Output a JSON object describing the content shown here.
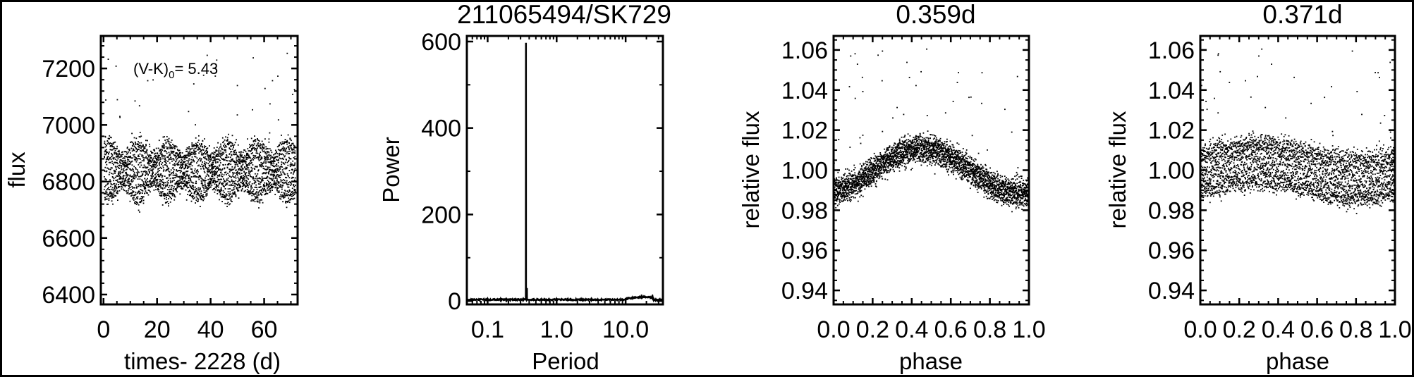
{
  "colors": {
    "ink": "#000000",
    "background": "#ffffff"
  },
  "chart_data": [
    {
      "type": "scatter",
      "title": "",
      "xlabel": "times- 2228 (d)",
      "ylabel": "flux",
      "xlim": [
        -1,
        72.5
      ],
      "ylim": [
        6365,
        7315
      ],
      "xticks": [
        0,
        20,
        40,
        60
      ],
      "xtick_labels": [
        "0",
        "20",
        "40",
        "60"
      ],
      "yticks": [
        6400,
        6600,
        6800,
        7000,
        7200
      ],
      "ytick_labels": [
        "6400",
        "6600",
        "6800",
        "7000",
        "7200"
      ],
      "annotation": {
        "prefix": "(V-K)",
        "sub": "0",
        "suffix": "= 5.43"
      },
      "grid": false,
      "series_summary": {
        "mean_flux": 6840,
        "band": [
          6730,
          6960
        ],
        "outlier_max": 7290,
        "time_span": [
          0,
          71.5
        ]
      }
    },
    {
      "type": "line",
      "title": "211065494/SK729",
      "xlabel": "Period",
      "ylabel": "Power",
      "xscale": "log",
      "xlim": [
        0.05,
        34.7
      ],
      "ylim": [
        -8,
        613
      ],
      "xticks": [
        0.1,
        1.0,
        10.0
      ],
      "xtick_labels": [
        "0.1",
        "1.0",
        "10.0"
      ],
      "yticks": [
        0,
        200,
        400,
        600
      ],
      "ytick_labels": [
        "0",
        "200",
        "400",
        "600"
      ],
      "grid": false,
      "peaks": [
        {
          "period": 0.359,
          "power": 597
        },
        {
          "period": 0.371,
          "power": 30
        }
      ],
      "baseline_power": 3
    },
    {
      "type": "scatter",
      "title": "0.359d",
      "xlabel": "phase",
      "ylabel": "relative flux",
      "xlim": [
        0,
        1
      ],
      "ylim": [
        0.933,
        1.067
      ],
      "xticks": [
        0,
        0.2,
        0.4,
        0.6,
        0.8,
        1.0
      ],
      "xtick_labels": [
        "0.0",
        "0.2",
        "0.4",
        "0.6",
        "0.8",
        "1.0"
      ],
      "yticks": [
        0.94,
        0.96,
        0.98,
        1.0,
        1.02,
        1.04,
        1.06
      ],
      "ytick_labels": [
        "0.94",
        "0.96",
        "0.98",
        "1.00",
        "1.02",
        "1.04",
        "1.06"
      ],
      "grid": false,
      "fold_period": 0.359,
      "series_summary": {
        "min_rel_flux": 0.987,
        "max_rel_flux": 1.01,
        "peak_phase": 0.45
      }
    },
    {
      "type": "scatter",
      "title": "0.371d",
      "xlabel": "phase",
      "ylabel": "relative flux",
      "xlim": [
        0,
        1
      ],
      "ylim": [
        0.933,
        1.067
      ],
      "xticks": [
        0,
        0.2,
        0.4,
        0.6,
        0.8,
        1.0
      ],
      "xtick_labels": [
        "0.0",
        "0.2",
        "0.4",
        "0.6",
        "0.8",
        "1.0"
      ],
      "yticks": [
        0.94,
        0.96,
        0.98,
        1.0,
        1.02,
        1.04,
        1.06
      ],
      "ytick_labels": [
        "0.94",
        "0.96",
        "0.98",
        "1.00",
        "1.02",
        "1.04",
        "1.06"
      ],
      "grid": false,
      "fold_period": 0.371,
      "series_summary": {
        "band": [
          0.983,
          1.012
        ]
      }
    }
  ]
}
